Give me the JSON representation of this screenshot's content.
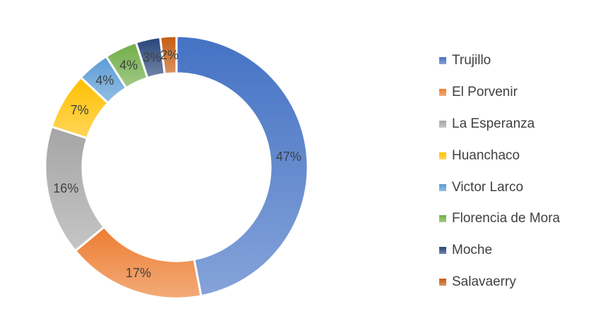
{
  "chart_data": {
    "type": "pie",
    "variant": "donut",
    "title": "",
    "categories": [
      "Trujillo",
      "El Porvenir",
      "La Esperanza",
      "Huanchaco",
      "Victor Larco",
      "Florencia de Mora",
      "Moche",
      "Salavaerry"
    ],
    "values": [
      47,
      17,
      16,
      7,
      4,
      4,
      3,
      2
    ],
    "data_labels": [
      "47%",
      "17%",
      "16%",
      "7%",
      "4%",
      "4%",
      "3%",
      "2%"
    ],
    "value_unit": "%",
    "legend_position": "right",
    "colors": [
      "#4472C4",
      "#ED7D31",
      "#A5A5A5",
      "#FFC000",
      "#5B9BD5",
      "#70AD47",
      "#264478",
      "#C55A11"
    ]
  }
}
